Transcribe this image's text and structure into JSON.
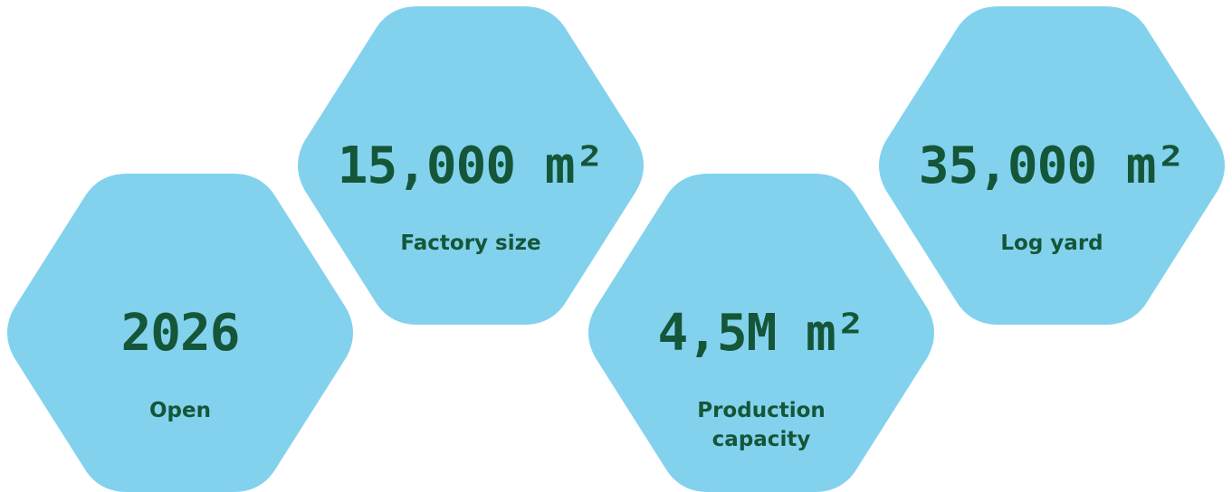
{
  "colors": {
    "hex_fill": "#82d2ee",
    "text": "#155639",
    "background": "#ffffff"
  },
  "stats": [
    {
      "value": "2026",
      "label_lines": [
        "Open"
      ]
    },
    {
      "value": "15,000 m²",
      "label_lines": [
        "Factory size"
      ]
    },
    {
      "value": "4,5M m²",
      "label_lines": [
        "Production",
        "capacity"
      ]
    },
    {
      "value": "35,000 m²",
      "label_lines": [
        "Log yard"
      ]
    }
  ]
}
